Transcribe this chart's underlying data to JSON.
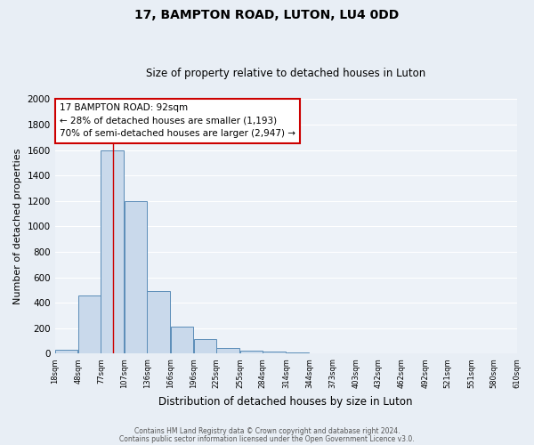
{
  "title_line1": "17, BAMPTON ROAD, LUTON, LU4 0DD",
  "title_line2": "Size of property relative to detached houses in Luton",
  "xlabel": "Distribution of detached houses by size in Luton",
  "ylabel": "Number of detached properties",
  "bar_left_edges": [
    18,
    48,
    77,
    107,
    136,
    166,
    196,
    225,
    255,
    284,
    314,
    344,
    373,
    403,
    432,
    462,
    492,
    521,
    551,
    580
  ],
  "bar_heights": [
    30,
    455,
    1600,
    1200,
    490,
    210,
    115,
    45,
    20,
    15,
    10,
    5,
    0,
    0,
    0,
    0,
    0,
    0,
    0,
    0
  ],
  "bin_width": 29,
  "bar_color": "#c9d9eb",
  "bar_edge_color": "#5b8db8",
  "property_line_x": 92,
  "annotation_line1": "17 BAMPTON ROAD: 92sqm",
  "annotation_line2": "← 28% of detached houses are smaller (1,193)",
  "annotation_line3": "70% of semi-detached houses are larger (2,947) →",
  "ylim": [
    0,
    2000
  ],
  "yticks": [
    0,
    200,
    400,
    600,
    800,
    1000,
    1200,
    1400,
    1600,
    1800,
    2000
  ],
  "tick_labels": [
    "18sqm",
    "48sqm",
    "77sqm",
    "107sqm",
    "136sqm",
    "166sqm",
    "196sqm",
    "225sqm",
    "255sqm",
    "284sqm",
    "314sqm",
    "344sqm",
    "373sqm",
    "403sqm",
    "432sqm",
    "462sqm",
    "492sqm",
    "521sqm",
    "551sqm",
    "580sqm",
    "610sqm"
  ],
  "background_color": "#e8eef5",
  "plot_bg_color": "#edf2f8",
  "footer_line1": "Contains HM Land Registry data © Crown copyright and database right 2024.",
  "footer_line2": "Contains public sector information licensed under the Open Government Licence v3.0.",
  "grid_color": "#d0d8e4",
  "red_line_color": "#cc0000",
  "ann_font_size": 7.5,
  "title_font_size": 10,
  "subtitle_font_size": 8.5,
  "footer_font_size": 5.5
}
